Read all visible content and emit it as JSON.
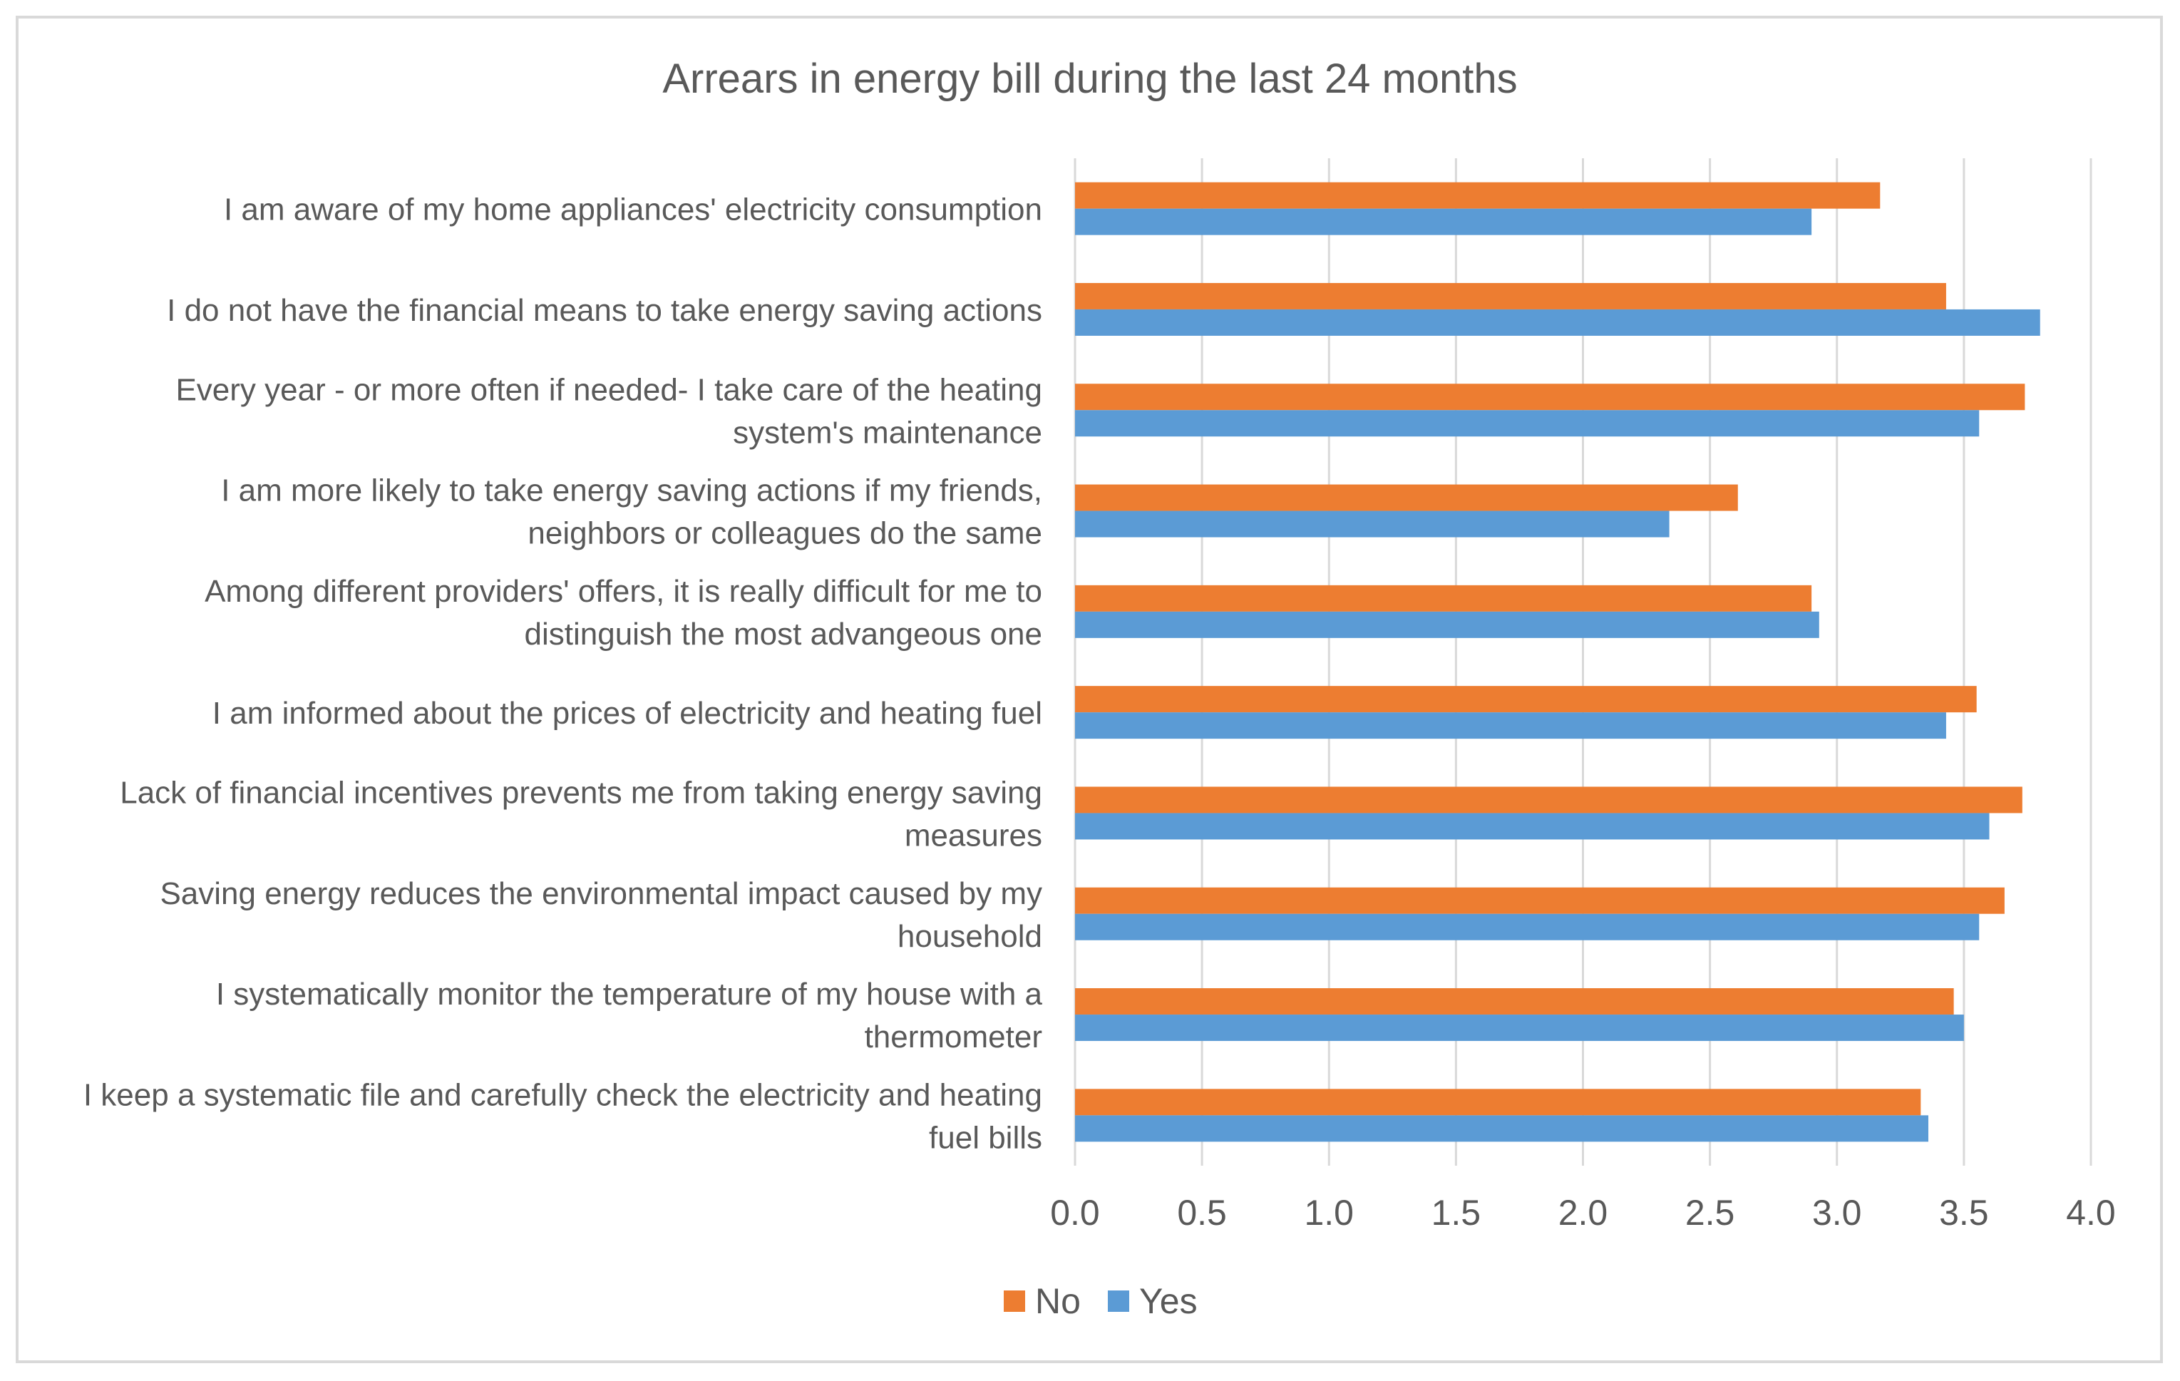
{
  "chart_data": {
    "type": "bar",
    "orientation": "horizontal",
    "title": "Arrears in energy bill during the last 24 months",
    "xlabel": "",
    "ylabel": "",
    "xlim": [
      0,
      4
    ],
    "tick_values": [
      0,
      0.5,
      1,
      1.5,
      2,
      2.5,
      3,
      3.5,
      4
    ],
    "tick_labels": [
      "0.0",
      "0.5",
      "1.0",
      "1.5",
      "2.0",
      "2.5",
      "3.0",
      "3.5",
      "4.0"
    ],
    "grid": true,
    "legend_position": "bottom",
    "categories": [
      [
        "I am aware of my home appliances' electricity consumption"
      ],
      [
        "I do not have the financial means to take energy saving actions"
      ],
      [
        "Every year - or more often if needed- I take care of the heating",
        "system's maintenance"
      ],
      [
        "I am more likely to take energy saving actions if my friends,",
        "neighbors or colleagues do the same"
      ],
      [
        "Among different providers' offers, it is really difficult for me to",
        "distinguish the most advangeous one"
      ],
      [
        "I am informed about the prices of electricity and heating fuel"
      ],
      [
        "Lack of financial incentives prevents me from taking energy saving",
        "measures"
      ],
      [
        "Saving energy reduces the environmental impact caused by my",
        "household"
      ],
      [
        "I systematically monitor the temperature of my house with a",
        "thermometer"
      ],
      [
        "I keep a systematic file and carefully check the electricity and heating",
        "fuel bills"
      ]
    ],
    "series": [
      {
        "name": "No",
        "color": "#ED7D31",
        "values": [
          3.17,
          3.43,
          3.74,
          2.61,
          2.9,
          3.55,
          3.73,
          3.66,
          3.46,
          3.33
        ]
      },
      {
        "name": "Yes",
        "color": "#5B9BD5",
        "values": [
          2.9,
          3.8,
          3.56,
          2.34,
          2.93,
          3.43,
          3.6,
          3.56,
          3.5,
          3.36
        ]
      }
    ]
  }
}
